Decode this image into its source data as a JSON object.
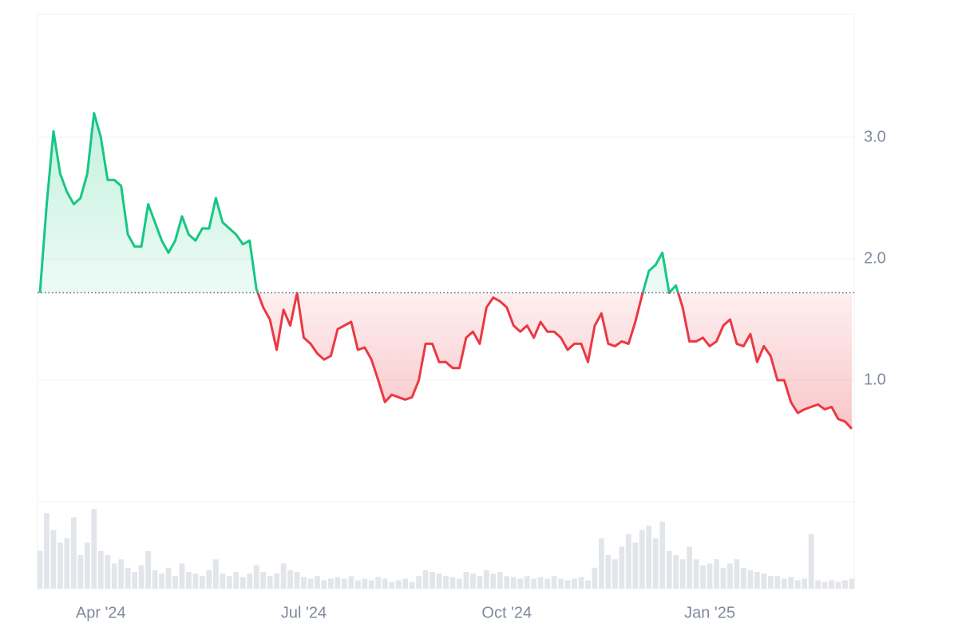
{
  "chart_data": {
    "type": "line",
    "categories": [
      null,
      null,
      null,
      null,
      null,
      null,
      null,
      null,
      null,
      "Apr '24",
      null,
      null,
      null,
      null,
      null,
      null,
      null,
      null,
      null,
      null,
      null,
      null,
      null,
      null,
      null,
      null,
      null,
      null,
      null,
      null,
      null,
      null,
      null,
      null,
      null,
      null,
      null,
      null,
      null,
      "Jul '24",
      null,
      null,
      null,
      null,
      null,
      null,
      null,
      null,
      null,
      null,
      null,
      null,
      null,
      null,
      null,
      null,
      null,
      null,
      null,
      null,
      null,
      null,
      null,
      null,
      null,
      null,
      null,
      null,
      null,
      "Oct '24",
      null,
      null,
      null,
      null,
      null,
      null,
      null,
      null,
      null,
      null,
      null,
      null,
      null,
      null,
      null,
      null,
      null,
      null,
      null,
      null,
      null,
      null,
      null,
      null,
      null,
      null,
      null,
      null,
      null,
      "Jan '25",
      null,
      null,
      null,
      null,
      null,
      null,
      null,
      null,
      null,
      null,
      null,
      null,
      null,
      null,
      null,
      null,
      null,
      null,
      null,
      null,
      null
    ],
    "series": [
      {
        "values": [
          1.72,
          2.45,
          3.05,
          2.7,
          2.55,
          2.45,
          2.5,
          2.7,
          3.2,
          3.0,
          2.65,
          2.65,
          2.6,
          2.2,
          2.1,
          2.1,
          2.45,
          2.3,
          2.15,
          2.05,
          2.15,
          2.35,
          2.2,
          2.15,
          2.25,
          2.25,
          2.5,
          2.3,
          2.25,
          2.2,
          2.12,
          2.15,
          1.75,
          1.6,
          1.5,
          1.25,
          1.58,
          1.45,
          1.72,
          1.35,
          1.3,
          1.22,
          1.17,
          1.2,
          1.42,
          1.45,
          1.48,
          1.25,
          1.27,
          1.17,
          1.0,
          0.82,
          0.88,
          0.86,
          0.84,
          0.86,
          1.0,
          1.3,
          1.3,
          1.15,
          1.15,
          1.1,
          1.1,
          1.35,
          1.4,
          1.3,
          1.6,
          1.68,
          1.65,
          1.6,
          1.45,
          1.4,
          1.45,
          1.35,
          1.48,
          1.4,
          1.4,
          1.35,
          1.25,
          1.3,
          1.3,
          1.15,
          1.45,
          1.55,
          1.3,
          1.28,
          1.32,
          1.3,
          1.48,
          1.7,
          1.9,
          1.95,
          2.05,
          1.72,
          1.78,
          1.6,
          1.32,
          1.32,
          1.35,
          1.28,
          1.32,
          1.45,
          1.5,
          1.3,
          1.28,
          1.38,
          1.15,
          1.28,
          1.2,
          1.0,
          1.0,
          0.82,
          0.73,
          0.76,
          0.78,
          0.8,
          0.76,
          0.78,
          0.68,
          0.66,
          0.6
        ],
        "up_color": "#16c784",
        "down_color": "#ea3943"
      },
      {
        "values": [
          45,
          90,
          70,
          55,
          60,
          85,
          40,
          55,
          95,
          45,
          40,
          30,
          35,
          25,
          20,
          28,
          45,
          22,
          18,
          25,
          15,
          30,
          20,
          18,
          15,
          22,
          35,
          18,
          15,
          20,
          14,
          18,
          28,
          20,
          15,
          18,
          30,
          22,
          20,
          14,
          12,
          15,
          10,
          12,
          14,
          12,
          15,
          10,
          12,
          10,
          14,
          12,
          8,
          10,
          12,
          8,
          15,
          22,
          20,
          18,
          15,
          14,
          12,
          20,
          18,
          15,
          22,
          18,
          20,
          15,
          14,
          12,
          15,
          12,
          14,
          12,
          15,
          12,
          10,
          12,
          14,
          10,
          25,
          60,
          40,
          35,
          50,
          65,
          55,
          70,
          75,
          60,
          80,
          45,
          40,
          35,
          50,
          35,
          28,
          30,
          35,
          25,
          30,
          35,
          25,
          22,
          20,
          18,
          15,
          15,
          12,
          14,
          10,
          12,
          65,
          10,
          8,
          10,
          8,
          10,
          12
        ],
        "axis": "volume",
        "color": "#e2e5ea"
      }
    ],
    "ylim": [
      0,
      4
    ],
    "yticks": [
      {
        "value": 1,
        "label": "1.0"
      },
      {
        "value": 2,
        "label": "2.0"
      },
      {
        "value": 3,
        "label": "3.0"
      }
    ],
    "baseline": 1.72,
    "volume_ylim": [
      0,
      100
    ],
    "grid": true
  }
}
